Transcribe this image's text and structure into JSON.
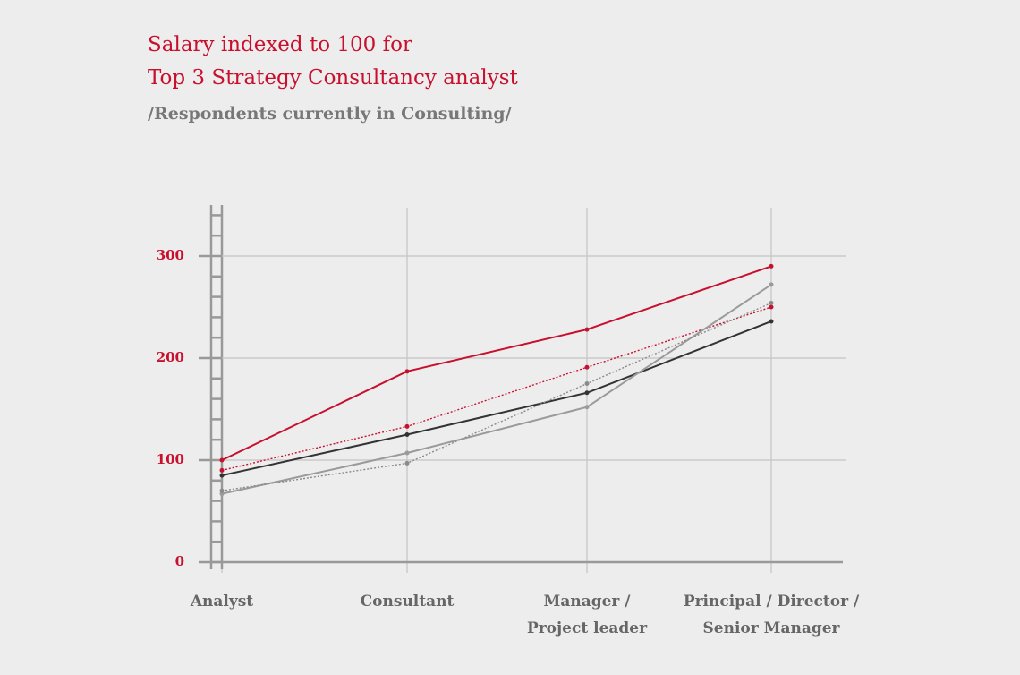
{
  "chart_data": {
    "type": "line",
    "title": "Salary indexed to 100 for\nTop 3 Strategy Consultancy analyst",
    "subtitle": "/Respondents currently in Consulting/",
    "categories": [
      "Analyst",
      "Consultant",
      "Manager /\nProject leader",
      "Principal / Director /\nSenior Manager"
    ],
    "series": [
      {
        "color": "#c8102e",
        "style": "solid",
        "values": [
          100,
          187,
          228,
          290
        ]
      },
      {
        "color": "#c8102e",
        "style": "dotted",
        "values": [
          90,
          133,
          191,
          250
        ]
      },
      {
        "color": "#333333",
        "style": "solid",
        "values": [
          85,
          125,
          166,
          236
        ]
      },
      {
        "color": "#9a9a9a",
        "style": "solid",
        "values": [
          67,
          107,
          152,
          272
        ]
      },
      {
        "color": "#8a8a8a",
        "style": "dotted",
        "values": [
          70,
          97,
          175,
          254
        ]
      }
    ],
    "ylim": [
      0,
      350
    ],
    "yticks": [
      0,
      100,
      200,
      300
    ],
    "minor_yticks": [
      20,
      40,
      60,
      80,
      120,
      140,
      160,
      180,
      220,
      240,
      260,
      280,
      320,
      340
    ],
    "grid": true
  }
}
